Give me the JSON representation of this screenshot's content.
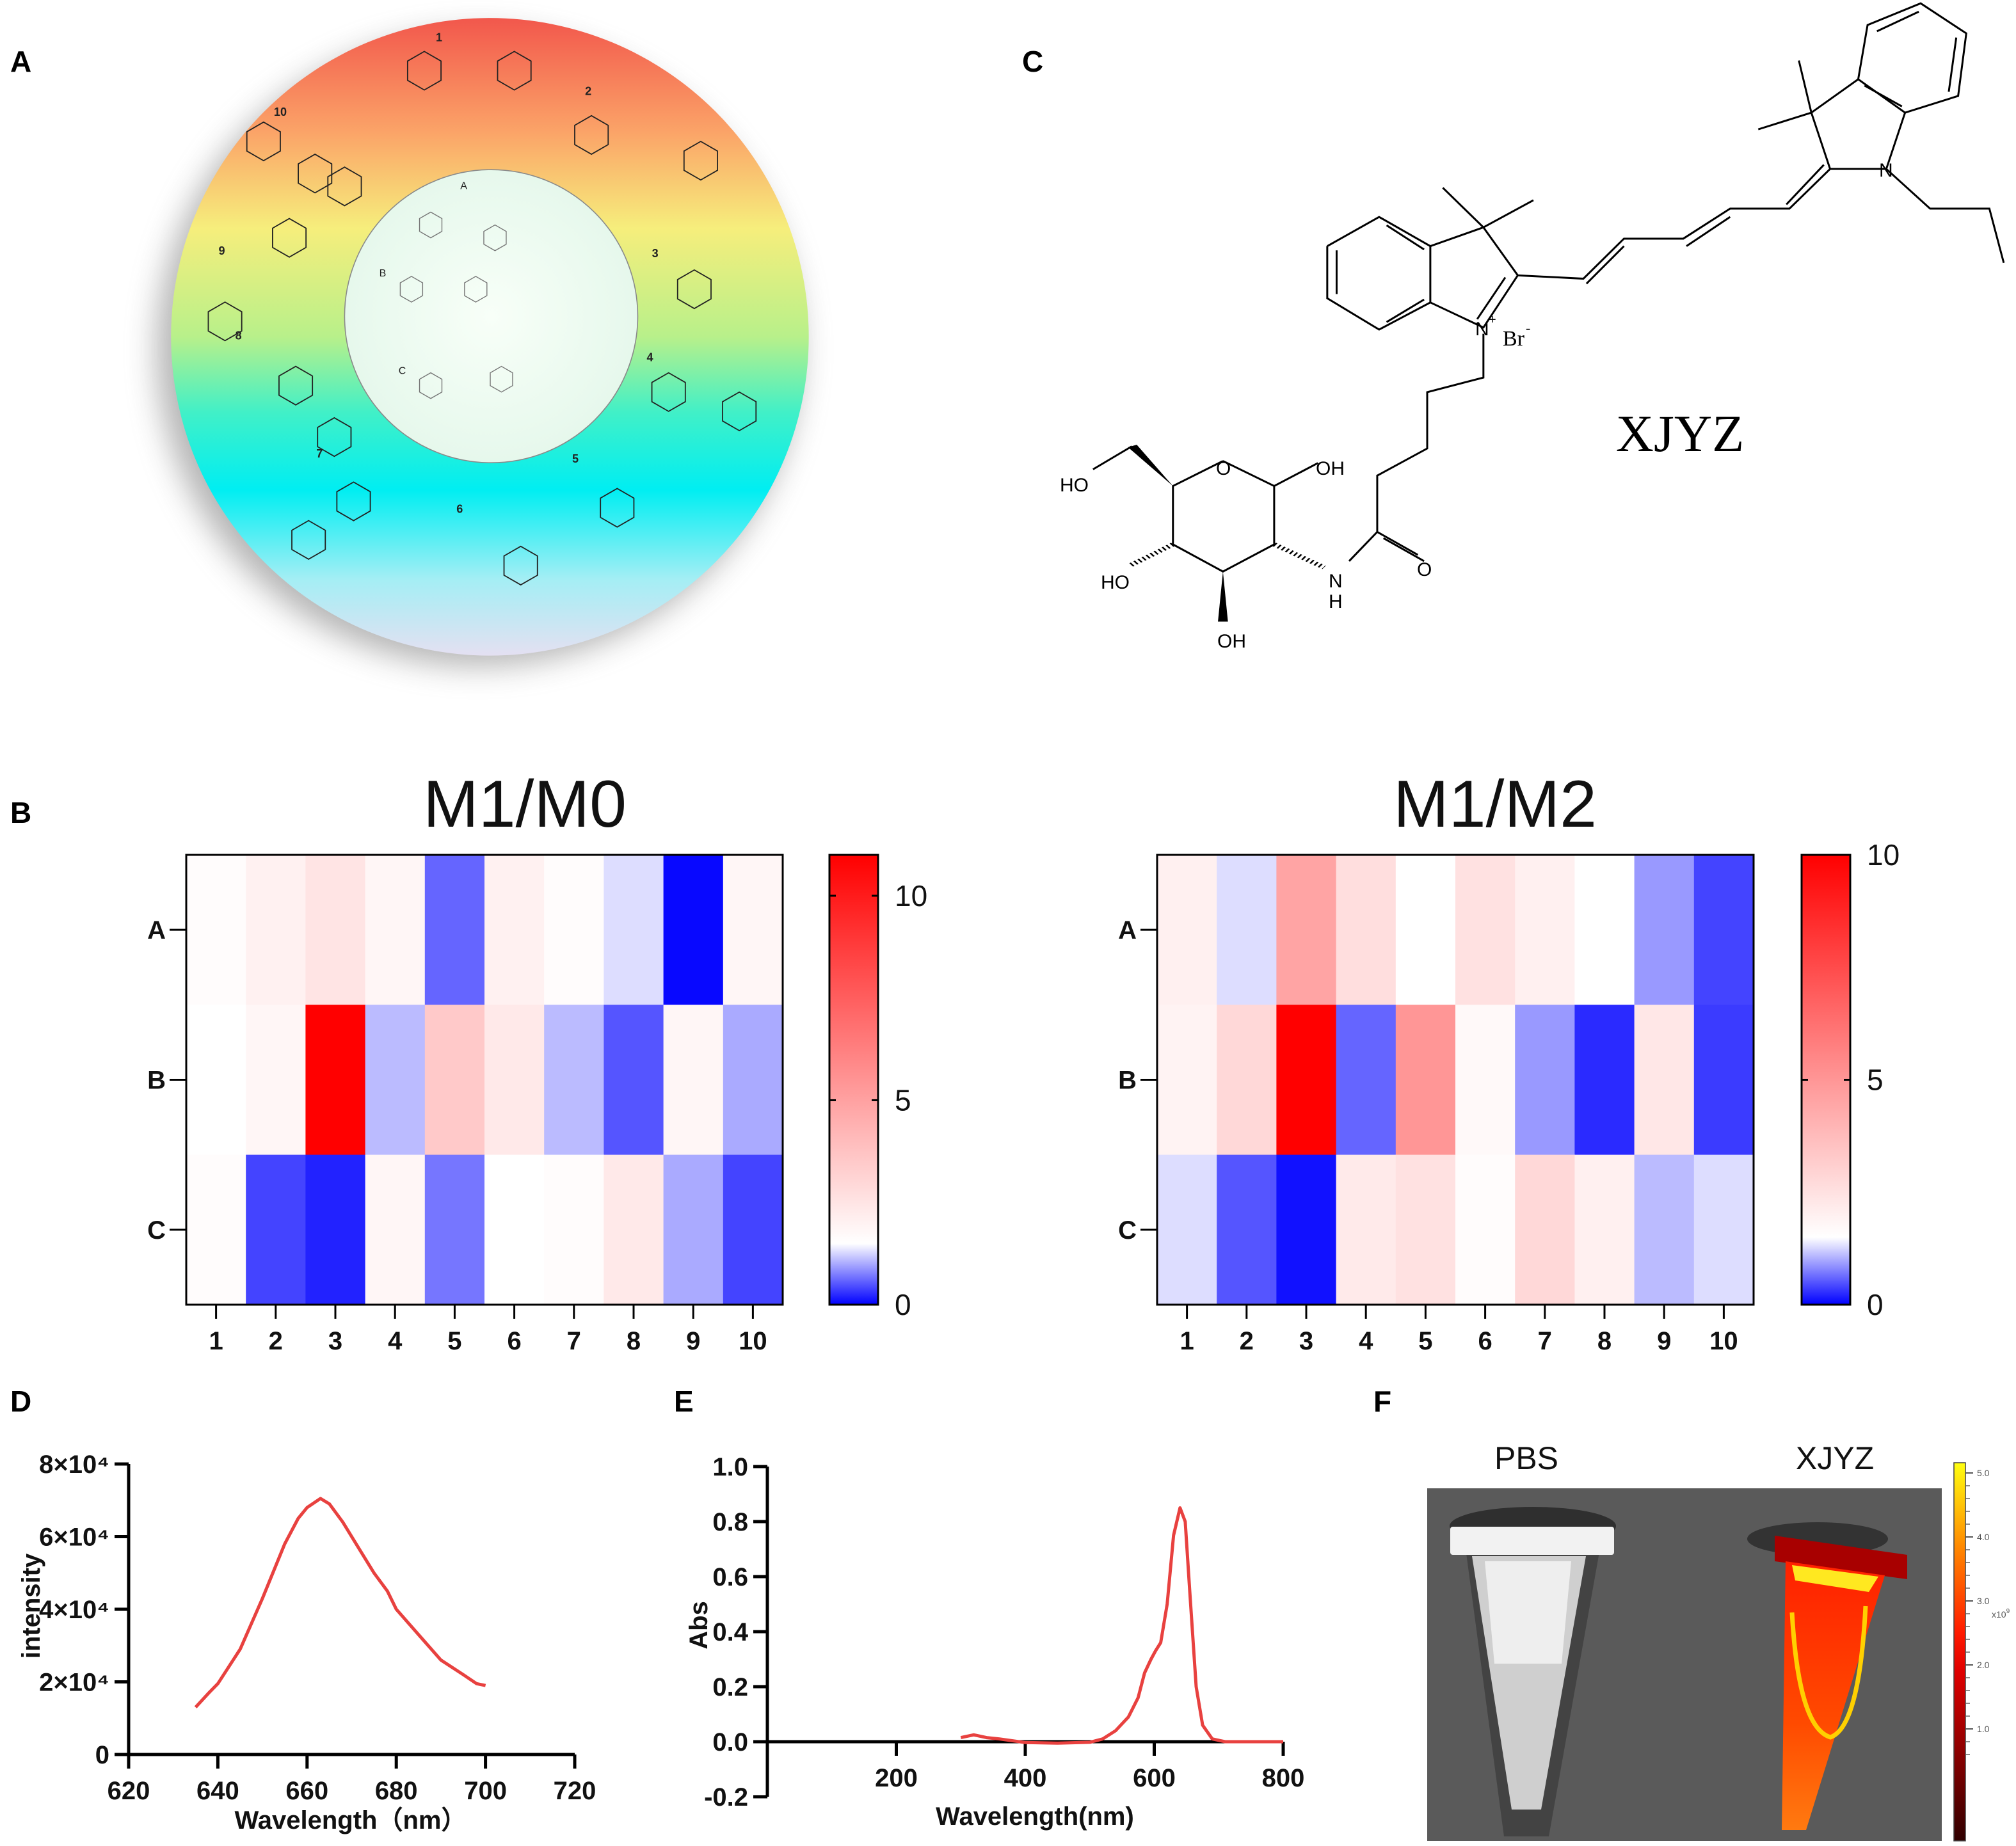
{
  "panel_labels": {
    "A": "A",
    "B": "B",
    "C": "C",
    "D": "D",
    "E": "E",
    "F": "F"
  },
  "panel_a": {
    "outer_numbers": [
      "1",
      "2",
      "3",
      "4",
      "5",
      "6",
      "7",
      "8",
      "9",
      "10"
    ],
    "inner_letters": [
      "A",
      "B",
      "C"
    ]
  },
  "panel_c": {
    "compound_name": "XJYZ",
    "atoms": {
      "n_plus": "N",
      "plus": "+",
      "bromide": "Br",
      "minus": "-",
      "n_right": "N",
      "ho_ch2": "HO",
      "ring_o": "O",
      "anomeric_oh": "OH",
      "ho_c4": "HO",
      "oh_c3": "OH",
      "amide_n": "N",
      "amide_h": "H",
      "carbonyl_o": "O"
    }
  },
  "chart_data": [
    {
      "type": "heatmap",
      "title": "M1/M0",
      "rows": [
        "A",
        "B",
        "C"
      ],
      "columns": [
        "1",
        "2",
        "3",
        "4",
        "5",
        "6",
        "7",
        "8",
        "9",
        "10"
      ],
      "values": [
        [
          1.6,
          2.0,
          2.5,
          1.8,
          0.6,
          2.0,
          1.6,
          1.3,
          0.05,
          1.8
        ],
        [
          1.5,
          1.8,
          11.0,
          1.1,
          3.5,
          2.3,
          1.1,
          0.5,
          1.8,
          1.0
        ],
        [
          1.6,
          0.4,
          0.2,
          1.8,
          0.7,
          1.5,
          1.6,
          2.3,
          1.0,
          0.4
        ]
      ],
      "colorbar": {
        "min": 0,
        "max": 11,
        "mid_value": 1.5,
        "tick_values": [
          0,
          5,
          10
        ],
        "tick_labels": [
          "0",
          "5",
          "10"
        ],
        "low": "#0000ff",
        "mid": "#ffffff",
        "high": "#ff0000"
      }
    },
    {
      "type": "heatmap",
      "title": "M1/M2",
      "rows": [
        "A",
        "B",
        "C"
      ],
      "columns": [
        "1",
        "2",
        "3",
        "4",
        "5",
        "6",
        "7",
        "8",
        "9",
        "10"
      ],
      "values": [
        [
          2.0,
          1.3,
          4.5,
          2.6,
          1.5,
          2.5,
          2.0,
          1.5,
          0.9,
          0.4
        ],
        [
          1.9,
          2.8,
          10.0,
          0.6,
          5.0,
          1.7,
          0.9,
          0.25,
          2.3,
          0.35
        ],
        [
          1.3,
          0.5,
          0.1,
          2.2,
          2.5,
          1.6,
          2.8,
          2.0,
          1.1,
          1.3
        ]
      ],
      "colorbar": {
        "min": 0,
        "max": 10,
        "mid_value": 1.5,
        "tick_values": [
          0,
          5,
          10
        ],
        "tick_labels": [
          "0",
          "5",
          "10"
        ],
        "low": "#0000ff",
        "mid": "#ffffff",
        "high": "#ff0000"
      }
    },
    {
      "type": "line",
      "title": "",
      "xlabel": "Wavelength（nm）",
      "ylabel": "intensity",
      "xlim": [
        620,
        720
      ],
      "ylim": [
        0,
        80000
      ],
      "xticks": [
        620,
        640,
        660,
        680,
        700,
        720
      ],
      "xtick_labels": [
        "620",
        "640",
        "660",
        "680",
        "700",
        "720"
      ],
      "yticks": [
        0,
        20000,
        40000,
        60000,
        80000
      ],
      "ytick_labels": [
        "0",
        "2×10⁴",
        "4×10⁴",
        "6×10⁴",
        "8×10⁴"
      ],
      "color": "#e8413f",
      "x": [
        635,
        638,
        640,
        645,
        650,
        655,
        658,
        660,
        663,
        665,
        668,
        672,
        675,
        678,
        680,
        685,
        690,
        695,
        698,
        700
      ],
      "y": [
        13000,
        17000,
        19500,
        29000,
        43000,
        58000,
        65000,
        68000,
        70500,
        69000,
        64000,
        56000,
        50000,
        45000,
        40000,
        33000,
        26000,
        22000,
        19500,
        19000
      ]
    },
    {
      "type": "line",
      "title": "",
      "xlabel": "Wavelength(nm)",
      "ylabel": "Abs",
      "xlim": [
        0,
        800
      ],
      "ylim": [
        -0.2,
        1.0
      ],
      "xticks": [
        200,
        400,
        600,
        800
      ],
      "xtick_labels": [
        "200",
        "400",
        "600",
        "800"
      ],
      "yticks": [
        -0.2,
        0.0,
        0.2,
        0.4,
        0.6,
        0.8,
        1.0
      ],
      "ytick_labels": [
        "-0.2",
        "0.0",
        "0.2",
        "0.4",
        "0.6",
        "0.8",
        "1.0"
      ],
      "color": "#e8413f",
      "x": [
        300,
        320,
        340,
        360,
        400,
        450,
        500,
        520,
        540,
        560,
        575,
        585,
        595,
        602,
        610,
        620,
        630,
        640,
        648,
        655,
        665,
        675,
        690,
        710,
        800
      ],
      "y": [
        0.015,
        0.025,
        0.015,
        0.01,
        -0.003,
        -0.005,
        -0.002,
        0.01,
        0.04,
        0.09,
        0.16,
        0.25,
        0.3,
        0.33,
        0.36,
        0.5,
        0.75,
        0.85,
        0.8,
        0.55,
        0.2,
        0.06,
        0.01,
        0.0,
        0.0
      ]
    }
  ],
  "panel_f": {
    "left_label": "PBS",
    "right_label": "XJYZ",
    "colorbar": {
      "tick_labels": [
        "5.0",
        "4.0",
        "3.0",
        "2.0",
        "1.0"
      ],
      "tick_values": [
        5.0,
        4.0,
        3.0,
        2.0,
        1.0
      ],
      "unit_label": "x10",
      "unit_exponent": "9"
    }
  }
}
